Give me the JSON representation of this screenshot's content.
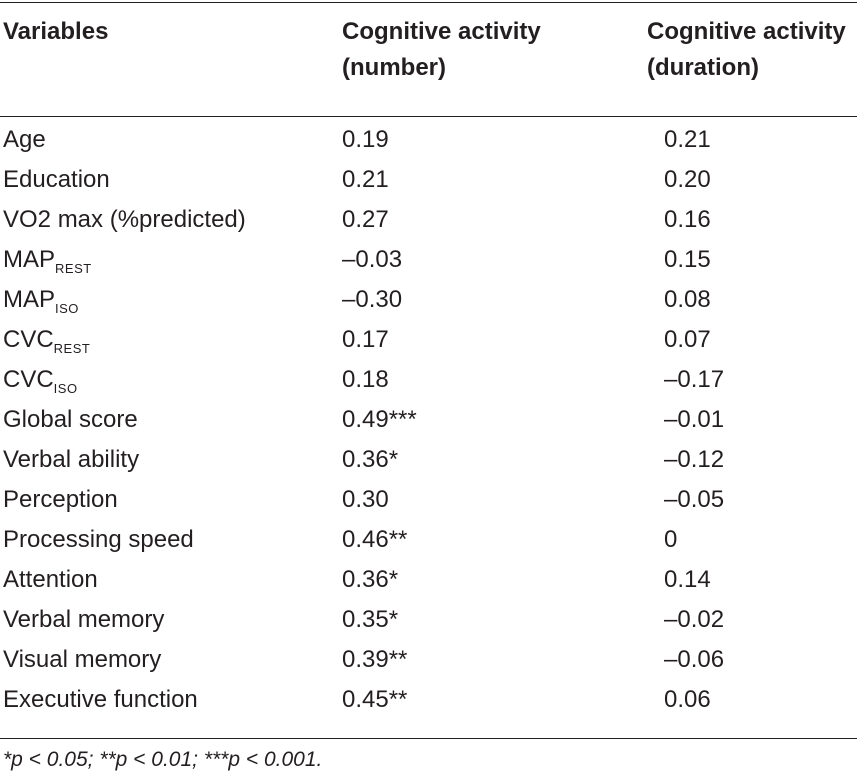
{
  "table": {
    "headers": {
      "col1": "Variables",
      "col2_line1": "Cognitive activity",
      "col2_line2": "(number)",
      "col3_line1": "Cognitive activity",
      "col3_line2": "(duration)"
    },
    "rows": [
      {
        "variable": "Age",
        "sub": "",
        "number": "0.19",
        "duration": "0.21"
      },
      {
        "variable": "Education",
        "sub": "",
        "number": "0.21",
        "duration": "0.20"
      },
      {
        "variable": "VO2 max (%predicted)",
        "sub": "",
        "number": "0.27",
        "duration": "0.16"
      },
      {
        "variable": "MAP",
        "sub": "REST",
        "number": "–0.03",
        "duration": "0.15"
      },
      {
        "variable": "MAP",
        "sub": "ISO",
        "number": "–0.30",
        "duration": "0.08"
      },
      {
        "variable": "CVC",
        "sub": "REST",
        "number": "0.17",
        "duration": "0.07"
      },
      {
        "variable": "CVC",
        "sub": "ISO",
        "number": "0.18",
        "duration": "–0.17"
      },
      {
        "variable": "Global score",
        "sub": "",
        "number": "0.49***",
        "duration": "–0.01"
      },
      {
        "variable": "Verbal ability",
        "sub": "",
        "number": "0.36*",
        "duration": "–0.12"
      },
      {
        "variable": "Perception",
        "sub": "",
        "number": "0.30",
        "duration": "–0.05"
      },
      {
        "variable": "Processing speed",
        "sub": "",
        "number": "0.46**",
        "duration": "0"
      },
      {
        "variable": "Attention",
        "sub": "",
        "number": "0.36*",
        "duration": "0.14"
      },
      {
        "variable": "Verbal memory",
        "sub": "",
        "number": "0.35*",
        "duration": "–0.02"
      },
      {
        "variable": "Visual memory",
        "sub": "",
        "number": "0.39**",
        "duration": "–0.06"
      },
      {
        "variable": "Executive function",
        "sub": "",
        "number": "0.45**",
        "duration": "0.06"
      }
    ],
    "footnote": "*p < 0.05; **p < 0.01; ***p < 0.001."
  }
}
